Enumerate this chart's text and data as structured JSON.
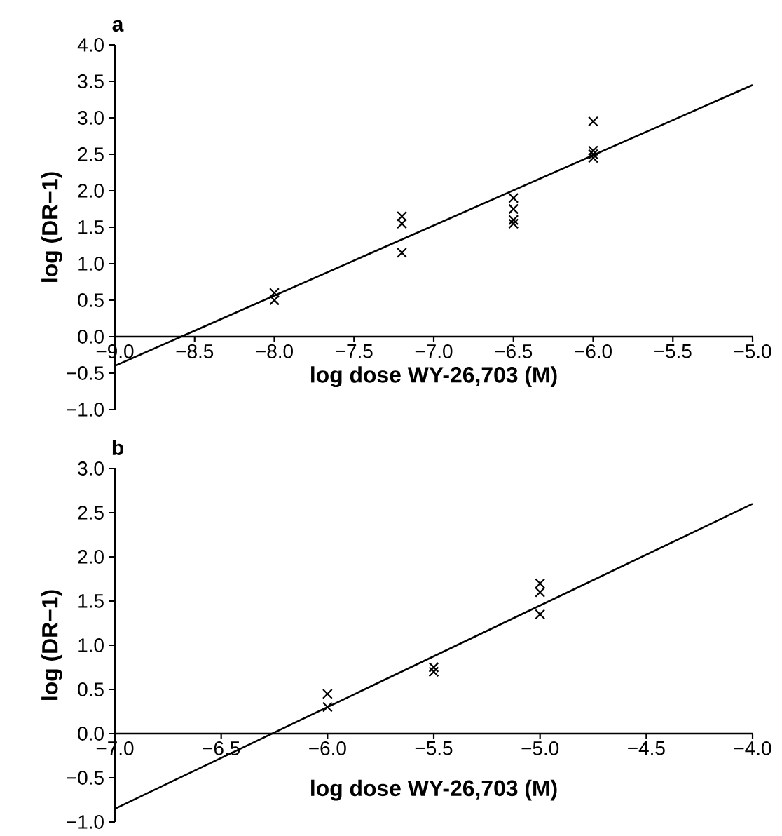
{
  "chart_data": [
    {
      "type": "scatter",
      "title": "a",
      "xlabel": "log dose WY-26,703 (M)",
      "ylabel": "log (DR−1)",
      "xlim": [
        -9,
        -5
      ],
      "ylim": [
        -1,
        4
      ],
      "xticks": [
        {
          "value": -9,
          "label": "−9.0"
        },
        {
          "value": -8.5,
          "label": "−8.5"
        },
        {
          "value": -8,
          "label": "−8.0"
        },
        {
          "value": -7.5,
          "label": "−7.5"
        },
        {
          "value": -7,
          "label": "−7.0"
        },
        {
          "value": -6.5,
          "label": "−6.5"
        },
        {
          "value": -6,
          "label": "−6.0"
        },
        {
          "value": -5.5,
          "label": "−5.5"
        },
        {
          "value": -5,
          "label": "−5.0"
        }
      ],
      "yticks": [
        {
          "value": -1,
          "label": "−1.0"
        },
        {
          "value": -0.5,
          "label": "−0.5"
        },
        {
          "value": 0,
          "label": "0.0"
        },
        {
          "value": 0.5,
          "label": "0.5"
        },
        {
          "value": 1,
          "label": "1.0"
        },
        {
          "value": 1.5,
          "label": "1.5"
        },
        {
          "value": 2,
          "label": "2.0"
        },
        {
          "value": 2.5,
          "label": "2.5"
        },
        {
          "value": 3,
          "label": "3.0"
        },
        {
          "value": 3.5,
          "label": "3.5"
        },
        {
          "value": 4,
          "label": "4.0"
        }
      ],
      "series": [
        {
          "type": "scatter",
          "marker": "cross",
          "color": "#000000",
          "x": [
            -8,
            -8,
            -7.2,
            -7.2,
            -7.2,
            -6.5,
            -6.5,
            -6.5,
            -6.5,
            -6,
            -6,
            -6,
            -6
          ],
          "values": [
            0.6,
            0.5,
            1.65,
            1.55,
            1.15,
            1.9,
            1.75,
            1.6,
            1.55,
            2.95,
            2.55,
            2.5,
            2.45
          ]
        },
        {
          "type": "line",
          "color": "#000000",
          "x": [
            -9,
            -5
          ],
          "values": [
            -0.4,
            3.45
          ]
        }
      ]
    },
    {
      "type": "scatter",
      "title": "b",
      "xlabel": "log dose WY-26,703 (M)",
      "ylabel": "log (DR−1)",
      "xlim": [
        -7,
        -4
      ],
      "ylim": [
        -1,
        3
      ],
      "xticks": [
        {
          "value": -7,
          "label": "−7.0"
        },
        {
          "value": -6.5,
          "label": "−6.5"
        },
        {
          "value": -6,
          "label": "−6.0"
        },
        {
          "value": -5.5,
          "label": "−5.5"
        },
        {
          "value": -5,
          "label": "−5.0"
        },
        {
          "value": -4.5,
          "label": "−4.5"
        },
        {
          "value": -4,
          "label": "−4.0"
        }
      ],
      "yticks": [
        {
          "value": -1,
          "label": "−1.0"
        },
        {
          "value": -0.5,
          "label": "−0.5"
        },
        {
          "value": 0,
          "label": "0.0"
        },
        {
          "value": 0.5,
          "label": "0.5"
        },
        {
          "value": 1,
          "label": "1.0"
        },
        {
          "value": 1.5,
          "label": "1.5"
        },
        {
          "value": 2,
          "label": "2.0"
        },
        {
          "value": 2.5,
          "label": "2.5"
        },
        {
          "value": 3,
          "label": "3.0"
        }
      ],
      "series": [
        {
          "type": "scatter",
          "marker": "cross",
          "color": "#000000",
          "x": [
            -6,
            -6,
            -5.5,
            -5.5,
            -5,
            -5,
            -5
          ],
          "values": [
            0.45,
            0.3,
            0.75,
            0.7,
            1.7,
            1.6,
            1.35
          ]
        },
        {
          "type": "line",
          "color": "#000000",
          "x": [
            -7,
            -4
          ],
          "values": [
            -0.85,
            2.6
          ]
        }
      ]
    }
  ]
}
